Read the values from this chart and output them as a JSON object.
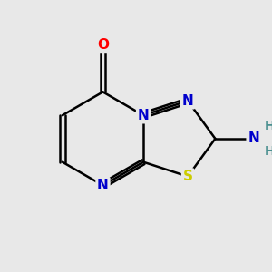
{
  "bg_color": "#e8e8e8",
  "bond_color": "#000000",
  "bond_width": 1.8,
  "atom_colors": {
    "N": "#0000cc",
    "S": "#cccc00",
    "O": "#ff0000",
    "C": "#000000",
    "H": "#4a9090"
  },
  "font_size": 11,
  "font_size_H": 10
}
